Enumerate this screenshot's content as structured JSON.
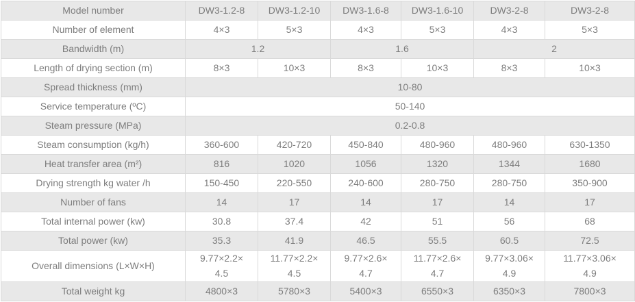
{
  "table": {
    "colors": {
      "row_alt_bg": "#e8e8e8",
      "row_bg": "#ffffff",
      "border": "#d9d9d9",
      "text": "#7d7d7d"
    },
    "rows": [
      {
        "label": "Model number",
        "colspan": 1,
        "values": [
          "DW3-1.2-8",
          "DW3-1.2-10",
          "DW3-1.6-8",
          "DW3-1.6-10",
          "DW3-2-8",
          "DW3-2-8"
        ]
      },
      {
        "label": "Number of element",
        "colspan": 1,
        "values": [
          "4×3",
          "5×3",
          "4×3",
          "5×3",
          "4×3",
          "5×3"
        ]
      },
      {
        "label": "Bandwidth (m)",
        "colspan": 2,
        "values": [
          "1.2",
          "1.6",
          "2"
        ]
      },
      {
        "label": "Length of drying section (m)",
        "colspan": 1,
        "values": [
          "8×3",
          "10×3",
          "8×3",
          "10×3",
          "8×3",
          "10×3"
        ]
      },
      {
        "label": "Spread thickness (mm)",
        "colspan": 6,
        "values": [
          "10-80"
        ]
      },
      {
        "label": "Service temperature (ºC)",
        "colspan": 6,
        "values": [
          "50-140"
        ]
      },
      {
        "label": "Steam pressure (MPa)",
        "colspan": 6,
        "values": [
          "0.2-0.8"
        ]
      },
      {
        "label": "Steam consumption (kg/h)",
        "colspan": 1,
        "values": [
          "360-600",
          "420-720",
          "450-840",
          "480-960",
          "480-960",
          "630-1350"
        ]
      },
      {
        "label": "Heat transfer area (m²)",
        "colspan": 1,
        "values": [
          "816",
          "1020",
          "1056",
          "1320",
          "1344",
          "1680"
        ]
      },
      {
        "label": "Drying strength kg water /h",
        "colspan": 1,
        "values": [
          "150-450",
          "220-550",
          "240-600",
          "280-750",
          "280-750",
          "350-900"
        ]
      },
      {
        "label": "Number of fans",
        "colspan": 1,
        "values": [
          "14",
          "17",
          "14",
          "17",
          "14",
          "17"
        ]
      },
      {
        "label": "Total internal power (kw)",
        "colspan": 1,
        "values": [
          "30.8",
          "37.4",
          "42",
          "51",
          "56",
          "68"
        ]
      },
      {
        "label": "Total power (kw)",
        "colspan": 1,
        "values": [
          "35.3",
          "41.9",
          "46.5",
          "55.5",
          "60.5",
          "72.5"
        ]
      },
      {
        "label": "Overall dimensions (L×W×H)",
        "colspan": 1,
        "values": [
          "9.77×2.2×\n4.5",
          "11.77×2.2×\n4.5",
          "9.77×2.6×\n4.7",
          "11.77×2.6×\n4.7",
          "9.77×3.06×\n4.9",
          "11.77×3.06×\n4.9"
        ]
      },
      {
        "label": "Total weight kg",
        "colspan": 1,
        "values": [
          "4800×3",
          "5780×3",
          "5400×3",
          "6550×3",
          "6350×3",
          "7800×3"
        ]
      }
    ]
  }
}
